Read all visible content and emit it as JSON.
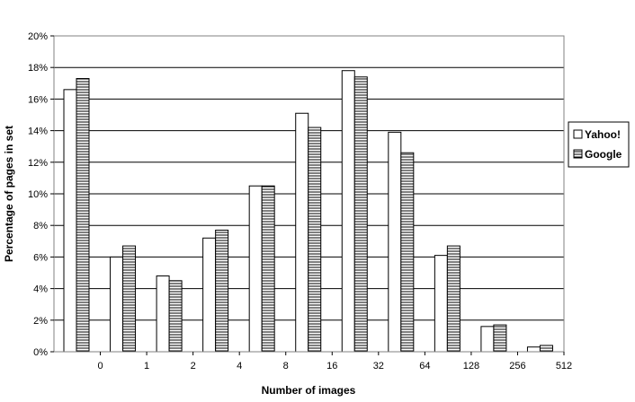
{
  "chart_data": {
    "type": "bar",
    "xlabel": "Number of images",
    "ylabel": "Percentage of pages in set",
    "ylim": [
      0,
      20
    ],
    "y_tick_step": 2,
    "y_tick_suffix": "%",
    "grid": "horizontal",
    "legend_position": "right",
    "x_ticks": [
      "0",
      "1",
      "2",
      "4",
      "8",
      "16",
      "32",
      "64",
      "128",
      "256",
      "512"
    ],
    "series": [
      {
        "name": "Yahoo!",
        "pattern": "plain-white",
        "values": [
          16.6,
          6.0,
          4.8,
          7.2,
          10.5,
          15.1,
          17.8,
          13.9,
          6.1,
          1.6,
          0.3
        ]
      },
      {
        "name": "Google",
        "pattern": "horizontal-lines",
        "values": [
          17.3,
          6.7,
          4.5,
          7.7,
          10.5,
          14.2,
          17.4,
          12.6,
          6.7,
          1.7,
          0.4
        ]
      }
    ]
  }
}
